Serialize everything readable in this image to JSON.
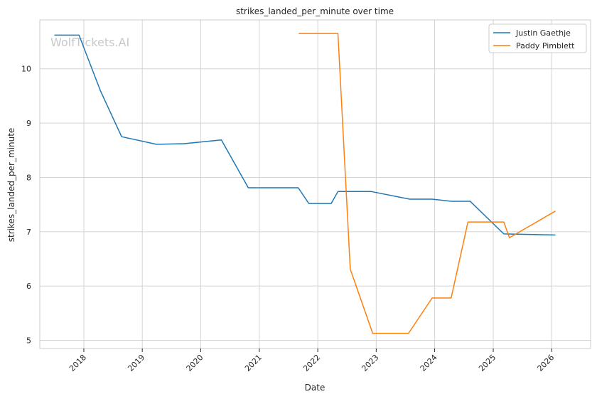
{
  "chart_data": {
    "type": "line",
    "title": "strikes_landed_per_minute over time",
    "xlabel": "Date",
    "ylabel": "strikes_landed_per_minute",
    "watermark": "WolfTickets.AI",
    "xlim": [
      "2017-04-01",
      "2026-09-01"
    ],
    "ylim": [
      4.85,
      10.9
    ],
    "yticks": [
      5,
      6,
      7,
      8,
      9,
      10
    ],
    "xticks": [
      "2018",
      "2019",
      "2020",
      "2021",
      "2022",
      "2023",
      "2024",
      "2025",
      "2026"
    ],
    "grid": true,
    "legend_position": "top-right",
    "series": [
      {
        "name": "Justin Gaethje",
        "color": "#1f77b4",
        "points": [
          {
            "x": "2017-07-01",
            "y": 10.62
          },
          {
            "x": "2017-12-02",
            "y": 10.62
          },
          {
            "x": "2018-04-14",
            "y": 9.6
          },
          {
            "x": "2018-08-25",
            "y": 8.75
          },
          {
            "x": "2019-03-30",
            "y": 8.61
          },
          {
            "x": "2019-09-14",
            "y": 8.62
          },
          {
            "x": "2020-05-09",
            "y": 8.69
          },
          {
            "x": "2020-10-24",
            "y": 7.81
          },
          {
            "x": "2021-09-01",
            "y": 7.81
          },
          {
            "x": "2021-11-06",
            "y": 7.52
          },
          {
            "x": "2022-03-26",
            "y": 7.52
          },
          {
            "x": "2022-05-07",
            "y": 7.74
          },
          {
            "x": "2022-12-01",
            "y": 7.74
          },
          {
            "x": "2023-07-29",
            "y": 7.6
          },
          {
            "x": "2023-12-16",
            "y": 7.6
          },
          {
            "x": "2024-04-13",
            "y": 7.56
          },
          {
            "x": "2024-08-10",
            "y": 7.56
          },
          {
            "x": "2025-03-08",
            "y": 6.96
          },
          {
            "x": "2026-01-24",
            "y": 6.94
          }
        ]
      },
      {
        "name": "Paddy Pimblett",
        "color": "#ff7f0e",
        "points": [
          {
            "x": "2021-09-04",
            "y": 10.65
          },
          {
            "x": "2022-05-07",
            "y": 10.65
          },
          {
            "x": "2022-07-23",
            "y": 6.31
          },
          {
            "x": "2022-12-10",
            "y": 5.13
          },
          {
            "x": "2023-07-22",
            "y": 5.13
          },
          {
            "x": "2023-12-16",
            "y": 5.78
          },
          {
            "x": "2024-04-13",
            "y": 5.78
          },
          {
            "x": "2024-07-27",
            "y": 7.18
          },
          {
            "x": "2025-03-08",
            "y": 7.18
          },
          {
            "x": "2025-04-12",
            "y": 6.89
          },
          {
            "x": "2026-01-24",
            "y": 7.38
          }
        ]
      }
    ]
  }
}
